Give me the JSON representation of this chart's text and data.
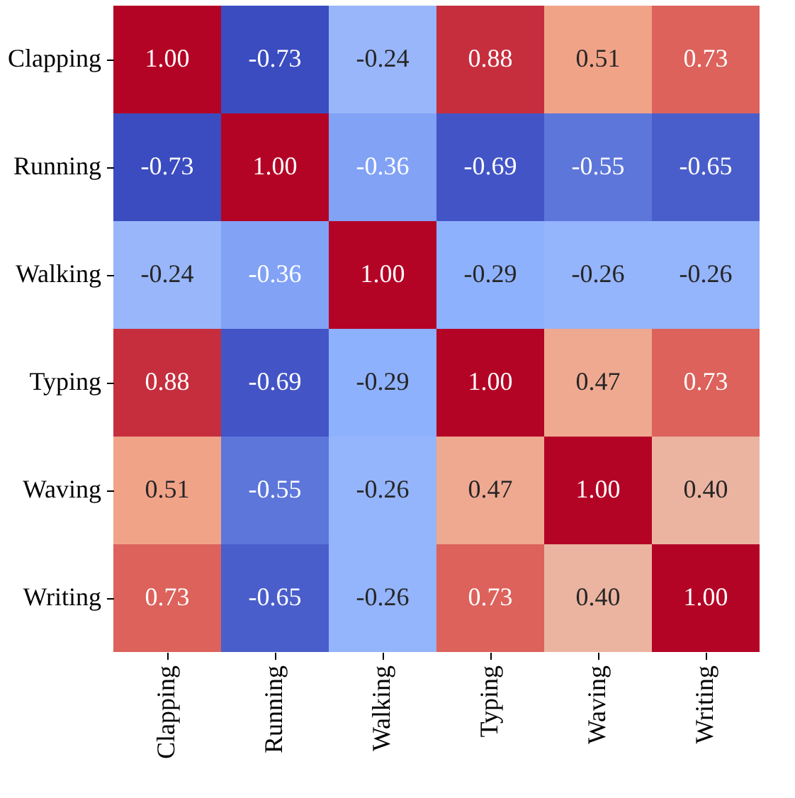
{
  "chart_data": {
    "type": "heatmap",
    "categories": [
      "Clapping",
      "Running",
      "Walking",
      "Typing",
      "Waving",
      "Writing"
    ],
    "y_categories": [
      "Clapping",
      "Running",
      "Walking",
      "Typing",
      "Waving",
      "Writing"
    ],
    "cells": [
      [
        1.0,
        -0.73,
        -0.24,
        0.88,
        0.51,
        0.73
      ],
      [
        -0.73,
        1.0,
        -0.36,
        -0.69,
        -0.55,
        -0.65
      ],
      [
        -0.24,
        -0.36,
        1.0,
        -0.29,
        -0.26,
        -0.26
      ],
      [
        0.88,
        -0.69,
        -0.29,
        1.0,
        0.47,
        0.73
      ],
      [
        0.51,
        -0.55,
        -0.26,
        0.47,
        1.0,
        0.4
      ],
      [
        0.73,
        -0.65,
        -0.26,
        0.73,
        0.4,
        1.0
      ]
    ],
    "cell_labels": [
      [
        "1.00",
        "-0.73",
        "-0.24",
        "0.88",
        "0.51",
        "0.73"
      ],
      [
        "-0.73",
        "1.00",
        "-0.36",
        "-0.69",
        "-0.55",
        "-0.65"
      ],
      [
        "-0.24",
        "-0.36",
        "1.00",
        "-0.29",
        "-0.26",
        "-0.26"
      ],
      [
        "0.88",
        "-0.69",
        "-0.29",
        "1.00",
        "0.47",
        "0.73"
      ],
      [
        "0.51",
        "-0.55",
        "-0.26",
        "0.47",
        "1.00",
        "0.40"
      ],
      [
        "0.73",
        "-0.65",
        "-0.26",
        "0.73",
        "0.40",
        "1.00"
      ]
    ]
  }
}
